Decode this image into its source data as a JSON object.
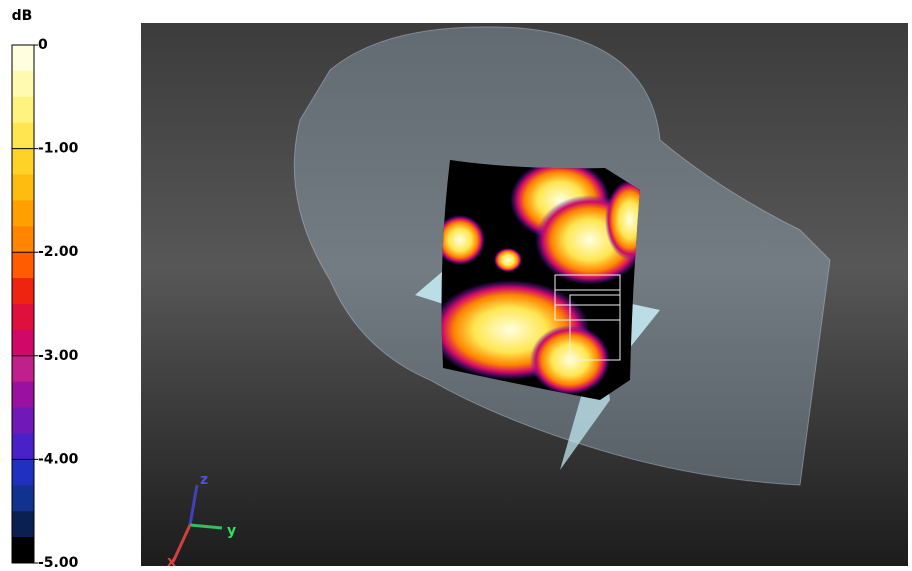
{
  "legend": {
    "unit": "dB",
    "ticks": [
      {
        "value": 0,
        "label": "0"
      },
      {
        "value": -1,
        "label": "-1.00"
      },
      {
        "value": -2,
        "label": "-2.00"
      },
      {
        "value": -3,
        "label": "-3.00"
      },
      {
        "value": -4,
        "label": "-4.00"
      },
      {
        "value": -5,
        "label": "-5.00"
      }
    ],
    "range": [
      -5,
      0
    ],
    "colors": [
      "#ffffe0",
      "#fffab0",
      "#fff380",
      "#ffe650",
      "#ffd228",
      "#ffbc10",
      "#ffa000",
      "#ff8400",
      "#ff5c00",
      "#ee2410",
      "#e0103c",
      "#d00868",
      "#c0208c",
      "#9a10a0",
      "#7018b8",
      "#4a20c8",
      "#2030c0",
      "#123290",
      "#0a2050",
      "#000000"
    ]
  },
  "viewport": {
    "axes": {
      "x": "x",
      "y": "y",
      "z": "z"
    }
  }
}
